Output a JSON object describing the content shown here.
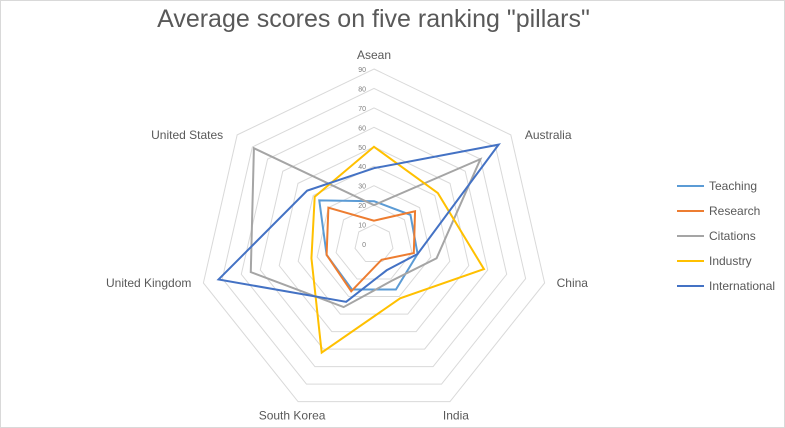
{
  "chart_data": {
    "type": "radar",
    "title": "Average scores on five ranking \"pillars\"",
    "categories": [
      "Asean",
      "Australia",
      "China",
      "India",
      "South  Korea",
      "United Kingdom",
      "United States"
    ],
    "rlim": [
      0,
      90
    ],
    "ticks": [
      0,
      10,
      20,
      30,
      40,
      50,
      60,
      70,
      80,
      90
    ],
    "grid": true,
    "legend": "right",
    "series": [
      {
        "name": "Teaching",
        "color": "#5B9BD5",
        "values": [
          22,
          24,
          23,
          26,
          26,
          25,
          36
        ]
      },
      {
        "name": "Research",
        "color": "#ED7D31",
        "values": [
          12,
          27,
          21,
          9,
          27,
          25,
          30
        ]
      },
      {
        "name": "Citations",
        "color": "#A5A5A5",
        "values": [
          20,
          70,
          33,
          21,
          36,
          65,
          79
        ]
      },
      {
        "name": "Industry",
        "color": "#FFC000",
        "values": [
          50,
          42,
          58,
          31,
          62,
          33,
          39
        ]
      },
      {
        "name": "International",
        "color": "#4472C4",
        "values": [
          39,
          82,
          23,
          15,
          33,
          82,
          44
        ]
      }
    ]
  }
}
